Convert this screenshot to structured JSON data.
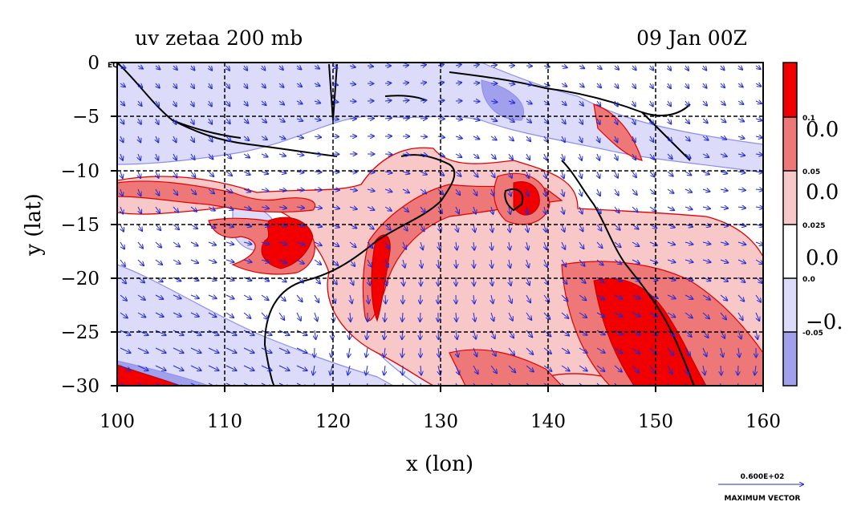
{
  "chart_data": {
    "type": "heatmap",
    "title": "uv zetaa 200 mb",
    "subtitle": "09 Jan 00Z",
    "xlabel": "x (lon)",
    "ylabel": "y (lat)",
    "xlim": [
      100,
      160
    ],
    "ylim": [
      -30,
      0
    ],
    "x_ticks": [
      "100",
      "110",
      "120",
      "130",
      "140",
      "150",
      "160"
    ],
    "y_ticks": [
      "0",
      "−5",
      "−10",
      "−15",
      "−20",
      "−25",
      "−30"
    ],
    "eq_label": "EQ",
    "grid": true,
    "colorbar": {
      "levels_small": [
        "0.1",
        "0.05",
        "0.025",
        "0.0",
        "-0.05"
      ],
      "levels_large": [
        "0.0",
        "0.0",
        "0.0",
        "−0."
      ],
      "colors": [
        "#f20000",
        "#ee7878",
        "#f8c8c8",
        "#ffffff",
        "#dcdcfa",
        "#a0a0ec"
      ]
    },
    "vector_legend": {
      "value": "0.600E+02",
      "label": "MAXIMUM VECTOR"
    },
    "colors": {
      "positive_strong": "#f20000",
      "positive_mid": "#ee7878",
      "positive_weak": "#f8c8c8",
      "negative_weak": "#dcdcfa",
      "negative_mid": "#a0a0ec",
      "contour_pos": "#e00000",
      "contour_neg": "#8c8cf0",
      "vectors": "#1f2ad8",
      "coast": "#000000"
    }
  }
}
